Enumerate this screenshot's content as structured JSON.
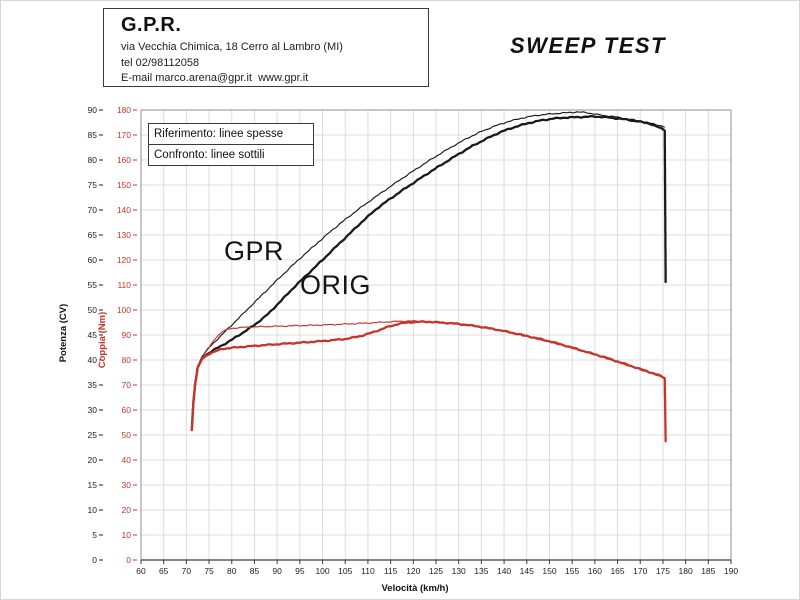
{
  "header": {
    "company": "G.P.R.",
    "address": "via Vecchia Chimica, 18 Cerro al Lambro (MI)",
    "phone": "tel 02/98112058",
    "email_line": "E-mail marco.arena@gpr.it  www.gpr.it"
  },
  "title": "SWEEP TEST",
  "legend": {
    "row1": "Riferimento: linee spesse",
    "row2": "Confronto: linee sottili"
  },
  "annotations": {
    "gpr": "GPR",
    "orig": "ORIG"
  },
  "chart_data": {
    "type": "line",
    "title": "SWEEP TEST",
    "xlabel": "Velocità (km/h)",
    "ylabel_power": "Potenza (CV)",
    "ylabel_torque": "Coppia (Nm)",
    "xlim": [
      60,
      190
    ],
    "ylim_power_cv": [
      0,
      90
    ],
    "ylim_torque_nm": [
      0,
      180
    ],
    "grid": true,
    "x_ticks": [
      60,
      65,
      70,
      75,
      80,
      85,
      90,
      95,
      100,
      105,
      110,
      115,
      120,
      125,
      130,
      135,
      140,
      145,
      150,
      155,
      160,
      165,
      170,
      175,
      180,
      185,
      190
    ],
    "y_ticks_power_cv": [
      0,
      5,
      10,
      15,
      20,
      25,
      30,
      35,
      40,
      45,
      50,
      55,
      60,
      65,
      70,
      75,
      80,
      85,
      90
    ],
    "y_ticks_torque_nm": [
      0,
      10,
      20,
      30,
      40,
      50,
      60,
      70,
      80,
      90,
      100,
      110,
      120,
      130,
      140,
      150,
      160,
      170,
      180
    ],
    "colors": {
      "power": "#1a1a1a",
      "torque": "#c8342c",
      "grid": "#dcdcdc",
      "frame": "#8f8f8f",
      "axis": "#3a3a3a"
    },
    "series": [
      {
        "name": "Potenza ORIG (riferimento, linea spessa)",
        "axis": "cv",
        "style": "thick",
        "color": "#1a1a1a",
        "points": [
          [
            71.2,
            26
          ],
          [
            71.5,
            31
          ],
          [
            71.9,
            35
          ],
          [
            72.5,
            38.5
          ],
          [
            73.5,
            40.5
          ],
          [
            76,
            42
          ],
          [
            79,
            43.5
          ],
          [
            82,
            45.2
          ],
          [
            85,
            47
          ],
          [
            88,
            49.2
          ],
          [
            91,
            52
          ],
          [
            94,
            54.8
          ],
          [
            97,
            57.4
          ],
          [
            100,
            60
          ],
          [
            103,
            62.7
          ],
          [
            106,
            65.3
          ],
          [
            109,
            67.9
          ],
          [
            112,
            70.3
          ],
          [
            115,
            72.3
          ],
          [
            118,
            74.2
          ],
          [
            121,
            76
          ],
          [
            124,
            77.8
          ],
          [
            127,
            79.5
          ],
          [
            130,
            81.2
          ],
          [
            133,
            82.8
          ],
          [
            136,
            84.2
          ],
          [
            139,
            85.5
          ],
          [
            142,
            86.5
          ],
          [
            145,
            87.3
          ],
          [
            148,
            87.9
          ],
          [
            151,
            88.3
          ],
          [
            154,
            88.5
          ],
          [
            157,
            88.6
          ],
          [
            160,
            88.7
          ],
          [
            163,
            88.5
          ],
          [
            166,
            88.2
          ],
          [
            169,
            87.8
          ],
          [
            172,
            87.3
          ],
          [
            174.6,
            86.3
          ],
          [
            175.4,
            86.0
          ],
          [
            175.6,
            55.6
          ]
        ]
      },
      {
        "name": "Potenza GPR (confronto, linea sottile)",
        "axis": "cv",
        "style": "thin",
        "color": "#1a1a1a",
        "points": [
          [
            71.2,
            26
          ],
          [
            71.5,
            31
          ],
          [
            71.9,
            35
          ],
          [
            72.5,
            38.5
          ],
          [
            73.5,
            40.8
          ],
          [
            75,
            42.5
          ],
          [
            78,
            45.2
          ],
          [
            81,
            47.9
          ],
          [
            84,
            50.6
          ],
          [
            87,
            53.3
          ],
          [
            90,
            56
          ],
          [
            93,
            58.6
          ],
          [
            96,
            61.1
          ],
          [
            99,
            63.5
          ],
          [
            102,
            65.9
          ],
          [
            105,
            68.1
          ],
          [
            108,
            70.2
          ],
          [
            111,
            72.2
          ],
          [
            114,
            74.1
          ],
          [
            117,
            76
          ],
          [
            120,
            77.8
          ],
          [
            123,
            79.6
          ],
          [
            126,
            81.3
          ],
          [
            129,
            82.9
          ],
          [
            132,
            84.4
          ],
          [
            135,
            85.7
          ],
          [
            138,
            86.8
          ],
          [
            141,
            87.7
          ],
          [
            144,
            88.4
          ],
          [
            147,
            88.9
          ],
          [
            150,
            89.2
          ],
          [
            153,
            89.4
          ],
          [
            156,
            89.6
          ],
          [
            158,
            89.5
          ],
          [
            160,
            89.2
          ],
          [
            162,
            88.9
          ],
          [
            164,
            88.7
          ],
          [
            166,
            88.4
          ],
          [
            168,
            88.1
          ],
          [
            170,
            87.8
          ],
          [
            172,
            87.4
          ],
          [
            174,
            87
          ],
          [
            175.3,
            86.6
          ]
        ]
      },
      {
        "name": "Coppia ORIG (riferimento, linea spessa)",
        "axis": "nm",
        "style": "thick",
        "color": "#c8342c",
        "points": [
          [
            71.2,
            52
          ],
          [
            71.5,
            62
          ],
          [
            71.9,
            70
          ],
          [
            72.5,
            77
          ],
          [
            73.5,
            80.5
          ],
          [
            75,
            82.5
          ],
          [
            78,
            84.5
          ],
          [
            82,
            85.2
          ],
          [
            86,
            85.8
          ],
          [
            90,
            86.3
          ],
          [
            94,
            86.8
          ],
          [
            98,
            87.3
          ],
          [
            102,
            87.9
          ],
          [
            105,
            88.4
          ],
          [
            108,
            89.4
          ],
          [
            111,
            91
          ],
          [
            114,
            93
          ],
          [
            117,
            94.6
          ],
          [
            120,
            95.2
          ],
          [
            123,
            95.3
          ],
          [
            126,
            95
          ],
          [
            129,
            94.6
          ],
          [
            132,
            94
          ],
          [
            135,
            93.2
          ],
          [
            138,
            92.3
          ],
          [
            141,
            91.2
          ],
          [
            144,
            90
          ],
          [
            147,
            88.8
          ],
          [
            150,
            87.5
          ],
          [
            153,
            86
          ],
          [
            156,
            84.4
          ],
          [
            159,
            82.8
          ],
          [
            162,
            81.2
          ],
          [
            165,
            79.4
          ],
          [
            168,
            77.6
          ],
          [
            171,
            75.8
          ],
          [
            174,
            74
          ],
          [
            175.4,
            72.8
          ],
          [
            175.6,
            47.5
          ]
        ]
      },
      {
        "name": "Coppia GPR (confronto, linea sottile)",
        "axis": "nm",
        "style": "thin",
        "color": "#c8342c",
        "points": [
          [
            71.2,
            52
          ],
          [
            71.5,
            62
          ],
          [
            71.9,
            70
          ],
          [
            72.5,
            77
          ],
          [
            73.5,
            81
          ],
          [
            75,
            85
          ],
          [
            76.5,
            89
          ],
          [
            78,
            91.5
          ],
          [
            80,
            92.7
          ],
          [
            84,
            93.2
          ],
          [
            88,
            93.4
          ],
          [
            92,
            93.6
          ],
          [
            96,
            93.8
          ],
          [
            100,
            94
          ],
          [
            104,
            94.3
          ],
          [
            108,
            94.6
          ],
          [
            112,
            95
          ],
          [
            116,
            95.4
          ],
          [
            119,
            95.6
          ],
          [
            122,
            95.4
          ],
          [
            125,
            95.1
          ],
          [
            128,
            94.7
          ],
          [
            131,
            94.2
          ],
          [
            134,
            93.5
          ],
          [
            137,
            92.6
          ],
          [
            140,
            91.5
          ],
          [
            143,
            90.3
          ],
          [
            146,
            89
          ],
          [
            149,
            87.7
          ],
          [
            152,
            86.3
          ],
          [
            155,
            84.8
          ],
          [
            158,
            83.2
          ],
          [
            161,
            81.6
          ],
          [
            164,
            79.8
          ],
          [
            167,
            78
          ],
          [
            170,
            76.2
          ],
          [
            173,
            74.3
          ],
          [
            175.3,
            73
          ]
        ]
      }
    ]
  }
}
